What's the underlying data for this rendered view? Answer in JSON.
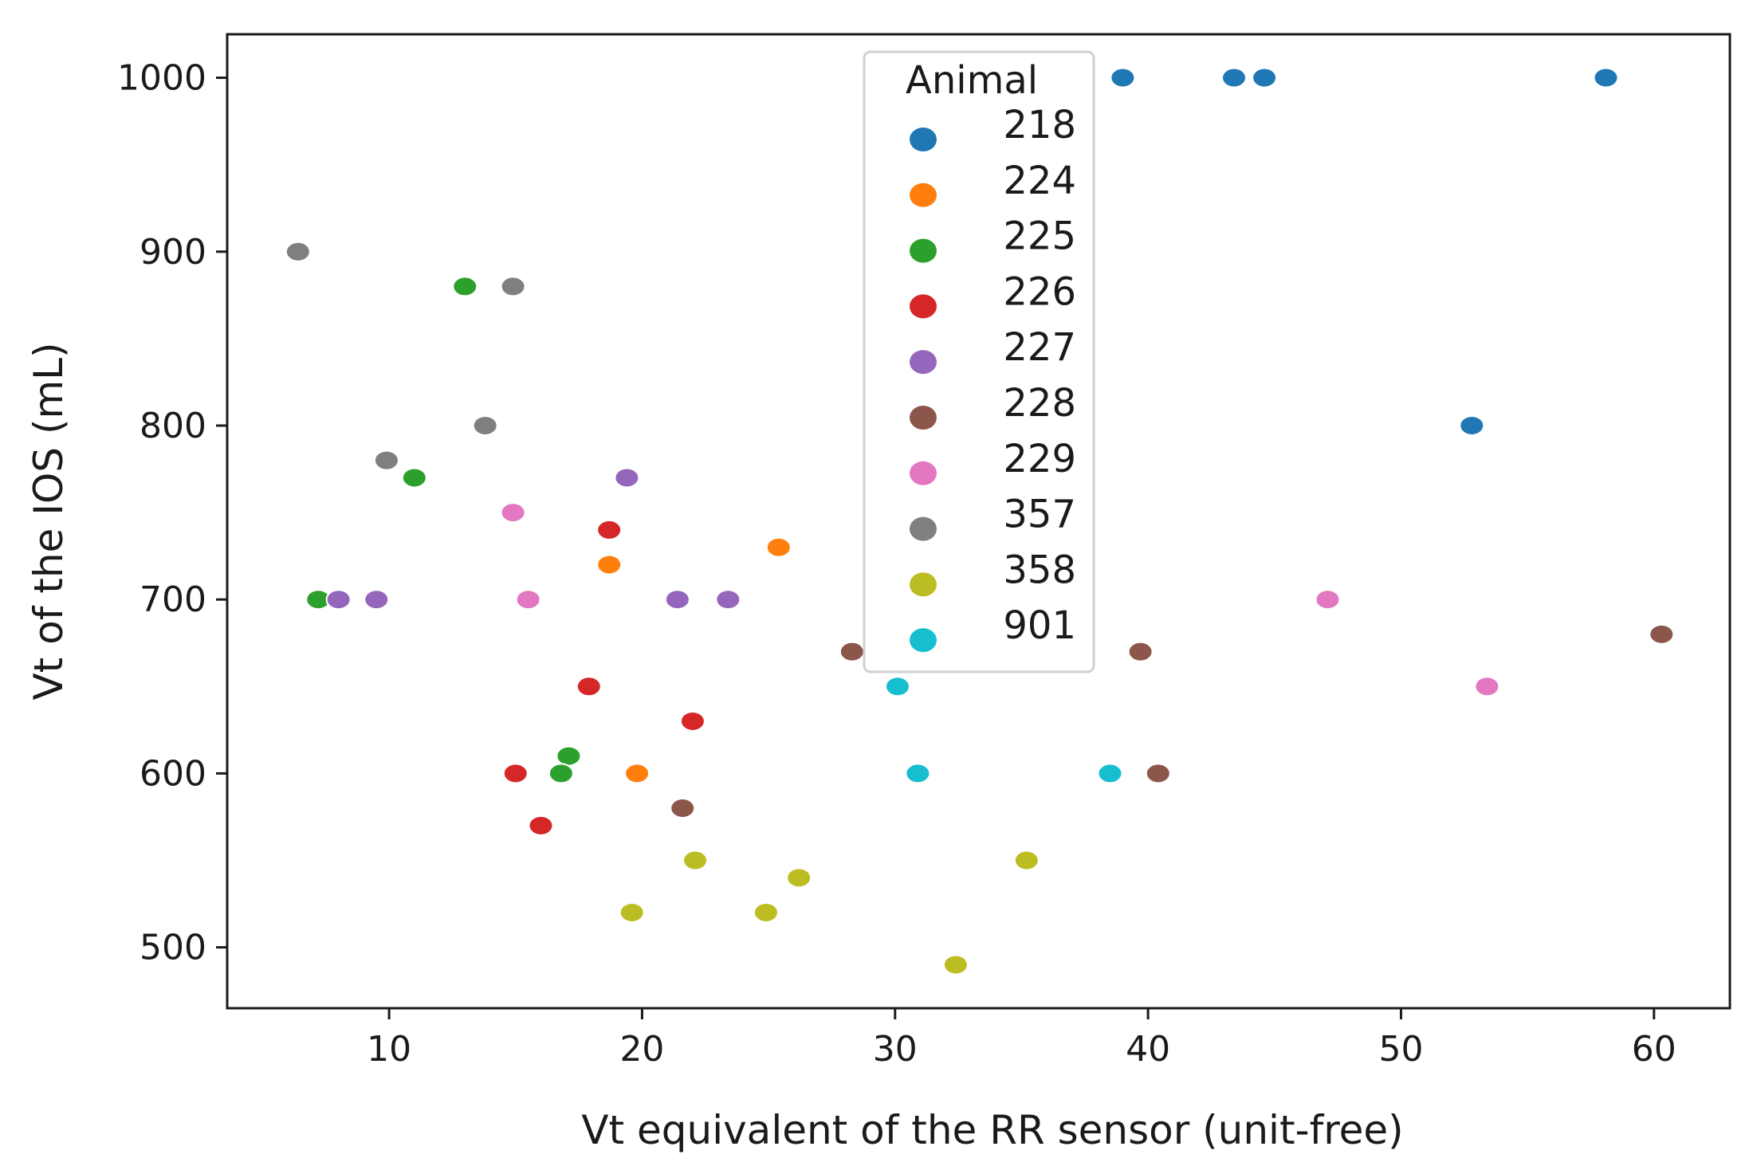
{
  "chart_data": {
    "type": "scatter",
    "title": "",
    "xlabel": "Vt equivalent of the RR sensor (unit-free)",
    "ylabel": "Vt of the IOS (mL)",
    "xlim": [
      3.6,
      63
    ],
    "ylim": [
      465,
      1025
    ],
    "xticks": [
      10,
      20,
      30,
      40,
      50,
      60
    ],
    "yticks": [
      500,
      600,
      700,
      800,
      900,
      1000
    ],
    "grid": false,
    "legend": {
      "title": "Animal",
      "position": "top-center"
    },
    "series": [
      {
        "name": "218",
        "color": "#1f77b4",
        "points": [
          [
            39,
            1000
          ],
          [
            43.4,
            1000
          ],
          [
            44.6,
            1000
          ],
          [
            58.1,
            1000
          ],
          [
            52.8,
            800
          ]
        ]
      },
      {
        "name": "224",
        "color": "#ff7f0e",
        "points": [
          [
            25.4,
            730
          ],
          [
            18.7,
            720
          ],
          [
            19.8,
            600
          ]
        ]
      },
      {
        "name": "225",
        "color": "#2ca02c",
        "points": [
          [
            13,
            880
          ],
          [
            11,
            770
          ],
          [
            7.2,
            700
          ],
          [
            17.1,
            610
          ],
          [
            16.8,
            600
          ]
        ]
      },
      {
        "name": "226",
        "color": "#d62728",
        "points": [
          [
            18.7,
            740
          ],
          [
            17.9,
            650
          ],
          [
            22,
            630
          ],
          [
            15,
            600
          ],
          [
            16,
            570
          ]
        ]
      },
      {
        "name": "227",
        "color": "#9467bd",
        "points": [
          [
            19.4,
            770
          ],
          [
            8,
            700
          ],
          [
            9.5,
            700
          ],
          [
            21.4,
            700
          ],
          [
            23.4,
            700
          ]
        ]
      },
      {
        "name": "228",
        "color": "#8c564b",
        "points": [
          [
            28.3,
            670
          ],
          [
            39.7,
            670
          ],
          [
            60.3,
            680
          ],
          [
            40.4,
            600
          ],
          [
            21.6,
            580
          ]
        ]
      },
      {
        "name": "229",
        "color": "#e377c2",
        "points": [
          [
            14.9,
            750
          ],
          [
            15.5,
            700
          ],
          [
            47.1,
            700
          ],
          [
            53.4,
            650
          ]
        ]
      },
      {
        "name": "357",
        "color": "#7f7f7f",
        "points": [
          [
            6.4,
            900
          ],
          [
            14.9,
            880
          ],
          [
            13.8,
            800
          ],
          [
            9.9,
            780
          ]
        ]
      },
      {
        "name": "358",
        "color": "#bcbd22",
        "points": [
          [
            22.1,
            550
          ],
          [
            35.2,
            550
          ],
          [
            26.2,
            540
          ],
          [
            19.6,
            520
          ],
          [
            24.9,
            520
          ],
          [
            32.4,
            490
          ]
        ]
      },
      {
        "name": "901",
        "color": "#17becf",
        "points": [
          [
            30.1,
            650
          ],
          [
            30.9,
            600
          ],
          [
            38.5,
            600
          ]
        ]
      }
    ]
  }
}
